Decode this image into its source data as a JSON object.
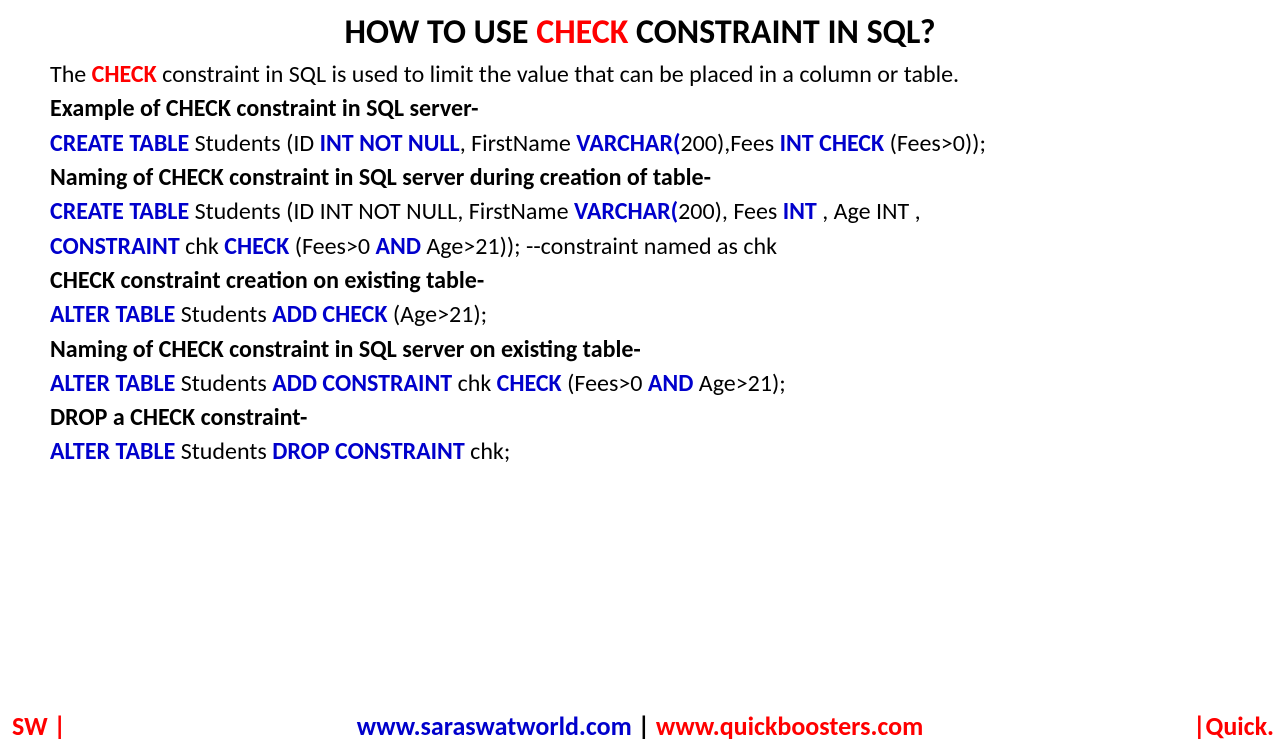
{
  "colors": {
    "bg": "#ffffff",
    "text": "#000000",
    "keyword": "#0000cc",
    "highlight": "#ff0000"
  },
  "title": {
    "pre": "HOW TO USE ",
    "hl": "CHECK",
    "post": " CONSTRAINT IN SQL?",
    "fontsize": 34
  },
  "intro": {
    "pre": "The ",
    "hl": "CHECK",
    "post": " constraint in SQL is used to limit the value that can be placed in a column or table."
  },
  "sec1": "Example of CHECK constraint in SQL server-",
  "ex1": {
    "p1": "CREATE TABLE",
    "p2": " Students (ID ",
    "p3": "INT NOT NULL",
    "p4": ", FirstName ",
    "p5": "VARCHAR(",
    "p6": "200),Fees ",
    "p7": "INT CHECK",
    "p8": " (Fees>0));"
  },
  "sec2": "Naming of CHECK constraint in SQL server during creation of table-",
  "ex2a": {
    "p1": "CREATE TABLE",
    "p2": " Students (ID INT NOT NULL, FirstName ",
    "p3": "VARCHAR(",
    "p4": "200), Fees ",
    "p5": "INT",
    "p6": " , Age INT ,"
  },
  "ex2b": {
    "p1": "CONSTRAINT ",
    "p2": "chk ",
    "p3": "CHECK",
    "p4": " (Fees>0 ",
    "p5": "AND",
    "p6": " Age>21));  --constraint named as chk"
  },
  "sec3": "CHECK constraint creation on existing table-",
  "ex3": {
    "p1": "ALTER TABLE",
    "p2": " Students ",
    "p3": "ADD CHECK",
    "p4": " (Age>21);"
  },
  "sec4": "Naming of CHECK constraint in SQL server on existing table-",
  "ex4": {
    "p1": "ALTER TABLE",
    "p2": " Students ",
    "p3": "ADD CONSTRAINT ",
    "p4": "chk ",
    "p5": "CHECK",
    "p6": " (Fees>0 ",
    "p7": "AND",
    "p8": " Age>21);"
  },
  "sec5": "DROP a CHECK constraint-",
  "ex5": {
    "p1": "ALTER TABLE",
    "p2": " Students ",
    "p3": "DROP CONSTRAINT ",
    "p4": "chk;"
  },
  "footer": {
    "left": "SW |",
    "url1": "www.saraswatworld.com",
    "sep": " | ",
    "url2": "www.quickboosters.com",
    "right": "|Quick."
  }
}
